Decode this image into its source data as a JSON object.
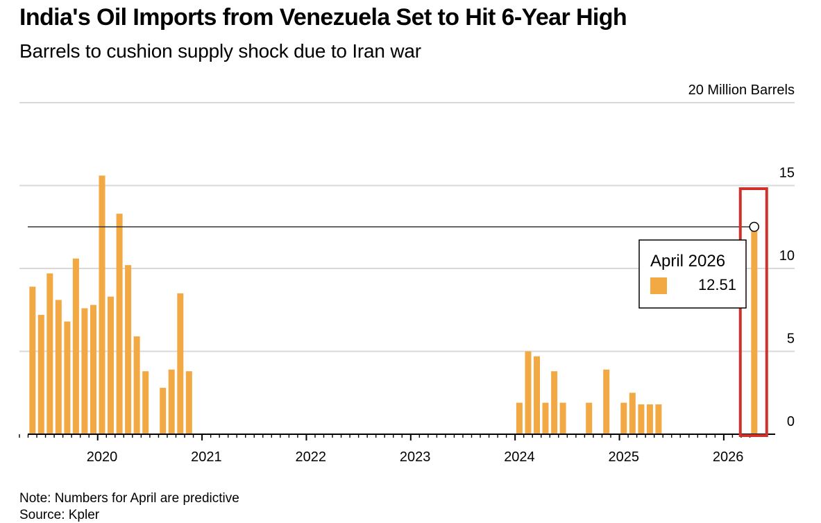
{
  "colors": {
    "bar": "#f2a944",
    "grid": "#d9d9d9",
    "axis": "#000000",
    "highlight": "#d0312d",
    "tooltip_border": "#000000"
  },
  "chart_data": {
    "type": "bar",
    "title": "India's Oil Imports from Venezuela Set to Hit 6-Year High",
    "subtitle": "Barrels to cushion supply shock due to Iran war",
    "unit_label": "20 Million Barrels",
    "y_ticks": [
      "15",
      "10",
      "5",
      "0"
    ],
    "y_tick_values": [
      15,
      10,
      5,
      0
    ],
    "ylim": [
      0,
      20
    ],
    "x_tick_labels": [
      "2020",
      "2021",
      "2022",
      "2023",
      "2024",
      "2025",
      "2026"
    ],
    "x_tick_years": [
      2020,
      2021,
      2022,
      2023,
      2024,
      2025,
      2026
    ],
    "x_range": [
      "2019-04",
      "2026-04"
    ],
    "series": [
      {
        "name": "Oil imports from Venezuela (million barrels)",
        "points": [
          {
            "date": "2019-05",
            "value": 8.9
          },
          {
            "date": "2019-06",
            "value": 7.2
          },
          {
            "date": "2019-07",
            "value": 9.7
          },
          {
            "date": "2019-08",
            "value": 8.1
          },
          {
            "date": "2019-09",
            "value": 6.8
          },
          {
            "date": "2019-10",
            "value": 10.6
          },
          {
            "date": "2019-11",
            "value": 7.6
          },
          {
            "date": "2019-12",
            "value": 7.8
          },
          {
            "date": "2020-01",
            "value": 15.6
          },
          {
            "date": "2020-02",
            "value": 8.3
          },
          {
            "date": "2020-03",
            "value": 13.3
          },
          {
            "date": "2020-04",
            "value": 10.2
          },
          {
            "date": "2020-05",
            "value": 5.9
          },
          {
            "date": "2020-06",
            "value": 3.8
          },
          {
            "date": "2020-08",
            "value": 2.8
          },
          {
            "date": "2020-09",
            "value": 3.9
          },
          {
            "date": "2020-10",
            "value": 8.5
          },
          {
            "date": "2020-11",
            "value": 3.8
          },
          {
            "date": "2024-01",
            "value": 1.9
          },
          {
            "date": "2024-02",
            "value": 5.0
          },
          {
            "date": "2024-03",
            "value": 4.7
          },
          {
            "date": "2024-04",
            "value": 1.9
          },
          {
            "date": "2024-05",
            "value": 3.8
          },
          {
            "date": "2024-06",
            "value": 1.9
          },
          {
            "date": "2024-09",
            "value": 1.9
          },
          {
            "date": "2024-11",
            "value": 3.9
          },
          {
            "date": "2025-01",
            "value": 1.9
          },
          {
            "date": "2025-02",
            "value": 2.5
          },
          {
            "date": "2025-03",
            "value": 1.8
          },
          {
            "date": "2025-04",
            "value": 1.8
          },
          {
            "date": "2025-05",
            "value": 1.8
          },
          {
            "date": "2026-04",
            "value": 12.51
          }
        ]
      }
    ],
    "reference_value": 12.51,
    "highlight_date": "2026-04",
    "tooltip": {
      "label": "April 2026",
      "value": "12.51"
    }
  },
  "note": "Note: Numbers for April are predictive",
  "source": "Source: Kpler"
}
